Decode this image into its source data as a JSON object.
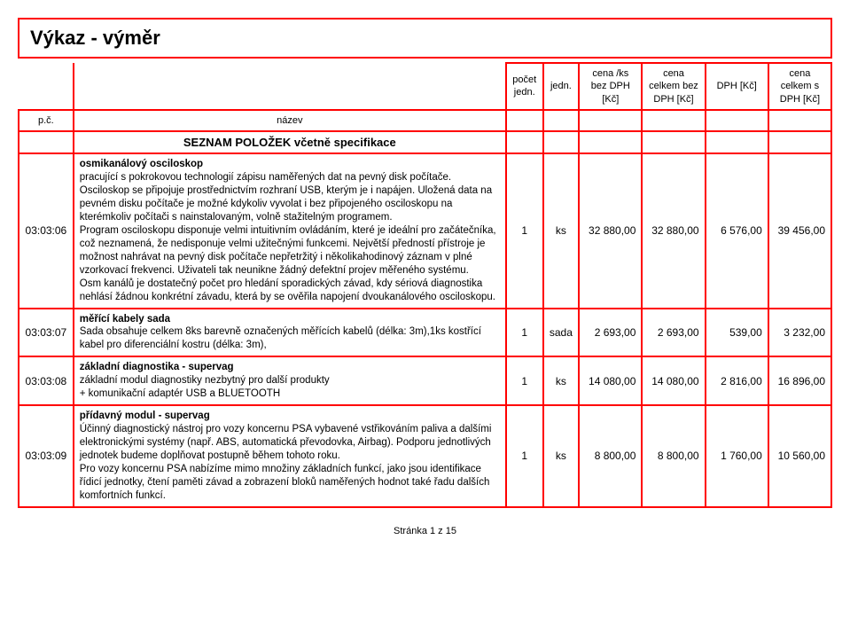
{
  "title": "Výkaz - výměr",
  "columns": {
    "pc": "p.č.",
    "name": "název",
    "qty": "počet jedn.",
    "unit": "jedn.",
    "price_no_vat": "cena /ks bez DPH [Kč]",
    "total_no_vat": "cena celkem bez DPH [Kč]",
    "vat": "DPH [Kč]",
    "total_vat": "cena celkem s DPH [Kč]"
  },
  "section_title": "SEZNAM POLOŽEK včetně specifikace",
  "rows": [
    {
      "pc": "03:03:06",
      "heading": "osmikanálový osciloskop",
      "body": "pracující s pokrokovou technologií zápisu naměřených dat na pevný disk počítače. Osciloskop se připojuje prostřednictvím rozhraní USB, kterým je i napájen. Uložená data na pevném disku počítače je možné kdykoliv vyvolat i bez připojeného osciloskopu na kterémkoliv počítači s nainstalovaným, volně stažitelným programem.\nProgram osciloskopu disponuje velmi intuitivním ovládáním, které je ideální pro začátečníka, což neznamená, že nedisponuje velmi užitečnými funkcemi. Největší předností přístroje je možnost nahrávat na pevný disk počítače nepřetržitý i několikahodinový záznam v plné vzorkovací frekvenci. Uživateli tak neunikne žádný defektní projev měřeného systému.\nOsm kanálů je dostatečný počet pro hledání sporadických závad, kdy sériová diagnostika nehlásí žádnou konkrétní závadu, která by se ověřila napojení dvoukanálového osciloskopu.",
      "qty": "1",
      "unit": "ks",
      "price_no_vat": "32 880,00",
      "total_no_vat": "32 880,00",
      "vat": "6 576,00",
      "total_vat": "39 456,00"
    },
    {
      "pc": "03:03:07",
      "heading": "měřící kabely sada",
      "body": "Sada obsahuje celkem 8ks barevně označených měřících kabelů (délka: 3m),1ks  kostřící kabel pro diferenciální kostru (délka: 3m),",
      "qty": "1",
      "unit": "sada",
      "price_no_vat": "2 693,00",
      "total_no_vat": "2 693,00",
      "vat": "539,00",
      "total_vat": "3 232,00"
    },
    {
      "pc": "03:03:08",
      "heading": "základní diagnostika - supervag",
      "body": "základní modul diagnostiky nezbytný pro další produkty\n+ komunikační adaptér USB a BLUETOOTH",
      "qty": "1",
      "unit": "ks",
      "price_no_vat": "14 080,00",
      "total_no_vat": "14 080,00",
      "vat": "2 816,00",
      "total_vat": "16 896,00"
    },
    {
      "pc": "03:03:09",
      "heading": "přídavný modul - supervag",
      "body": "Účinný diagnostický nástroj pro vozy koncernu PSA vybavené vstřikováním paliva a dalšími elektronickými systémy (např. ABS, automatická převodovka, Airbag). Podporu jednotlivých jednotek budeme doplňovat postupně během tohoto roku.\nPro vozy koncernu PSA nabízíme mimo množiny základních funkcí, jako jsou identifikace řídicí jednotky, čtení paměti závad a zobrazení bloků naměřených hodnot  také řadu dalších komfortních funkcí.",
      "qty": "1",
      "unit": "ks",
      "price_no_vat": "8 800,00",
      "total_no_vat": "8 800,00",
      "vat": "1 760,00",
      "total_vat": "10 560,00"
    }
  ],
  "footer": "Stránka 1 z 15"
}
